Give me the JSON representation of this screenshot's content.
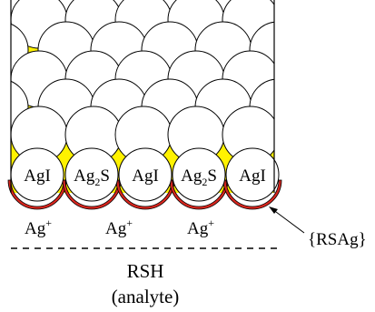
{
  "colors": {
    "interstitial": "#fff200",
    "coating": "#d7261e",
    "sphere_fill": "#ffffff",
    "outline": "#000000"
  },
  "spheres": [
    {
      "label": "AgI",
      "sub": ""
    },
    {
      "label": "Ag",
      "sub": "2",
      "suffix": "S"
    },
    {
      "label": "AgI",
      "sub": ""
    },
    {
      "label": "Ag",
      "sub": "2",
      "suffix": "S"
    },
    {
      "label": "AgI",
      "sub": ""
    }
  ],
  "ion": {
    "symbol": "Ag",
    "charge": "+"
  },
  "coating_label": "{RSAg}",
  "analyte": {
    "name": "RSH",
    "note": "(analyte)"
  }
}
